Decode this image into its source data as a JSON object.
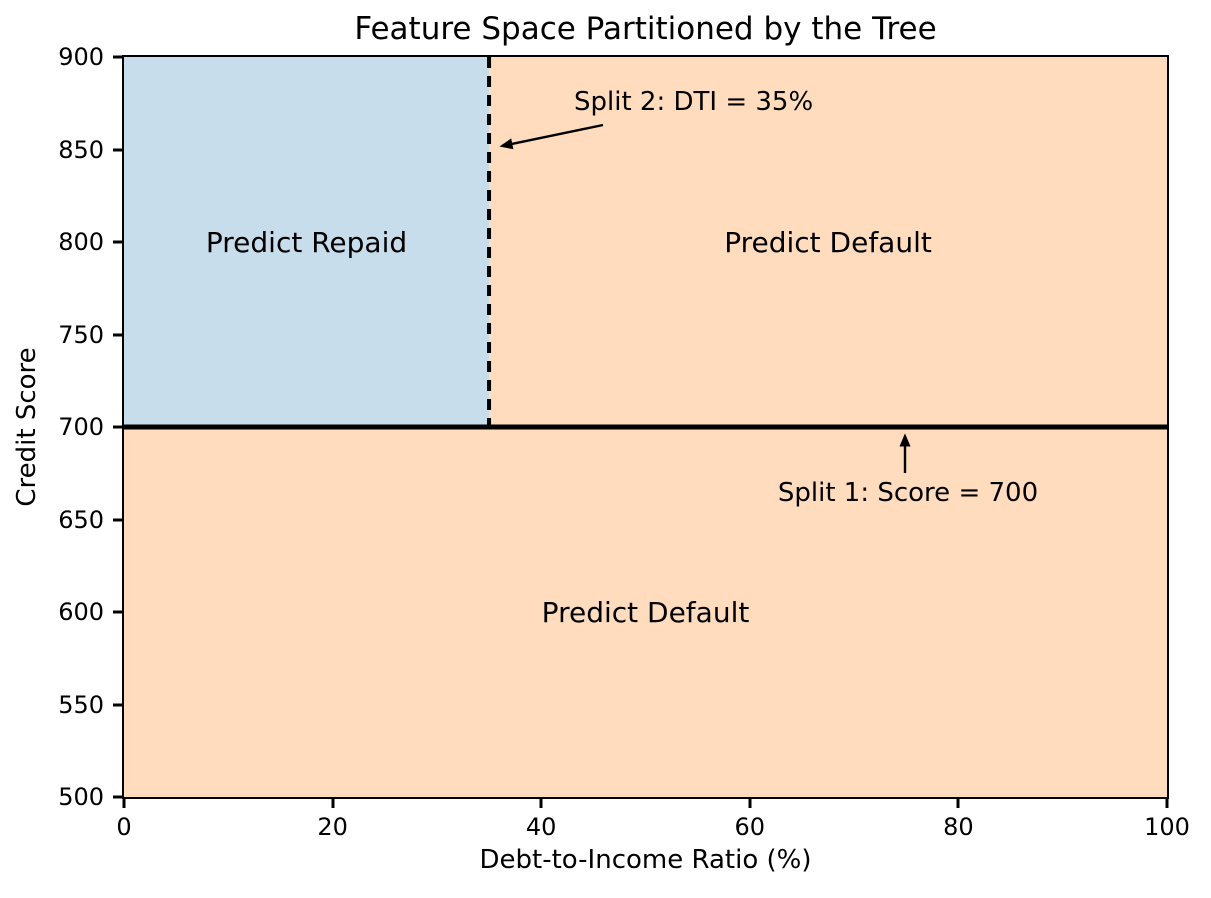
{
  "chart_data": {
    "type": "area",
    "title": "Feature Space Partitioned by the Tree",
    "xlabel": "Debt-to-Income Ratio (%)",
    "ylabel": "Credit Score",
    "xlim": [
      0,
      100
    ],
    "ylim": [
      500,
      900
    ],
    "xticks": [
      0,
      20,
      40,
      60,
      80,
      100
    ],
    "yticks": [
      500,
      550,
      600,
      650,
      700,
      750,
      800,
      850,
      900
    ],
    "grid": false,
    "legend": false,
    "regions": [
      {
        "label": "Predict Repaid",
        "x0": 0,
        "x1": 35,
        "y0": 700,
        "y1": 900,
        "color": "#c7ddec"
      },
      {
        "label": "Predict Default",
        "x0": 35,
        "x1": 100,
        "y0": 700,
        "y1": 900,
        "color": "#fedcbd"
      },
      {
        "label": "Predict Default",
        "x0": 0,
        "x1": 100,
        "y0": 500,
        "y1": 700,
        "color": "#fedcbd"
      }
    ],
    "splits": [
      {
        "name": "Split 1",
        "axis": "y",
        "value": 700,
        "line_style": "solid",
        "annotation": "Split 1: Score = 700"
      },
      {
        "name": "Split 2",
        "axis": "x",
        "value": 35,
        "line_style": "dashed",
        "annotation": "Split 2: DTI = 35%"
      }
    ],
    "line_color": "#000000",
    "background_color": "#ffffff"
  }
}
